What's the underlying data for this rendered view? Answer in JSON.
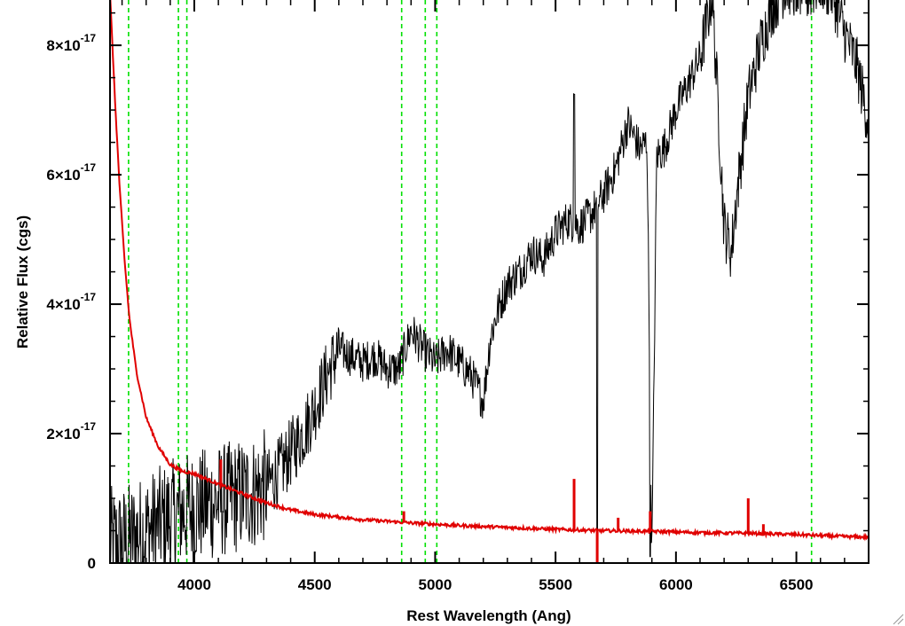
{
  "chart_data": {
    "type": "line",
    "xlabel": "Rest Wavelength (Ang)",
    "ylabel": "Relative Flux (cgs)",
    "xlim": [
      3650,
      6800
    ],
    "ylim": [
      0,
      8.7e-17
    ],
    "x_ticks": [
      4000,
      4500,
      5000,
      5500,
      6000,
      6500
    ],
    "x_tick_labels": [
      "4000",
      "4500",
      "5000",
      "5500",
      "6000",
      "6500"
    ],
    "y_ticks": [
      0,
      2e-17,
      4e-17,
      6e-17,
      8e-17
    ],
    "y_tick_labels": [
      {
        "mantissa": "0",
        "exponent": ""
      },
      {
        "mantissa": "2×10",
        "exponent": "-17"
      },
      {
        "mantissa": "4×10",
        "exponent": "-17"
      },
      {
        "mantissa": "6×10",
        "exponent": "-17"
      },
      {
        "mantissa": "8×10",
        "exponent": "-17"
      }
    ],
    "grid": false,
    "vertical_lines": {
      "style": "dashed",
      "color": "#00e000",
      "x": [
        3727,
        3934,
        3969,
        4861,
        4959,
        5007,
        6563
      ]
    },
    "series": [
      {
        "color": "#000000",
        "style": "noisy-spectrum",
        "x": [
          3650,
          3700,
          3750,
          3800,
          3850,
          3900,
          3950,
          4000,
          4050,
          4100,
          4150,
          4200,
          4250,
          4300,
          4350,
          4400,
          4450,
          4500,
          4550,
          4600,
          4650,
          4700,
          4750,
          4800,
          4850,
          4900,
          4950,
          5000,
          5050,
          5100,
          5150,
          5200,
          5230,
          5260,
          5300,
          5350,
          5400,
          5450,
          5500,
          5550,
          5600,
          5650,
          5700,
          5750,
          5800,
          5850,
          5880,
          5900,
          5920,
          5950,
          6000,
          6050,
          6100,
          6150,
          6180,
          6200,
          6230,
          6250,
          6300,
          6350,
          6400,
          6450,
          6500,
          6550,
          6600,
          6650,
          6700,
          6750,
          6800
        ],
        "y": [
          3e-18,
          3e-18,
          4e-18,
          5e-18,
          6e-18,
          7e-18,
          8e-18,
          8.5e-18,
          9e-18,
          9.5e-18,
          1e-17,
          1.05e-17,
          1.1e-17,
          1.2e-17,
          1.4e-17,
          1.7e-17,
          2e-17,
          2.4e-17,
          2.9e-17,
          3.3e-17,
          3.2e-17,
          3.1e-17,
          3.2e-17,
          3e-17,
          3e-17,
          3.6e-17,
          3.3e-17,
          3.1e-17,
          3.3e-17,
          3.1e-17,
          2.9e-17,
          2.5e-17,
          3.5e-17,
          3.9e-17,
          4.3e-17,
          4.5e-17,
          4.8e-17,
          4.7e-17,
          5.1e-17,
          5.3e-17,
          5.2e-17,
          5.4e-17,
          5.7e-17,
          6.1e-17,
          6.8e-17,
          6.4e-17,
          6.5e-17,
          1e-18,
          6.3e-17,
          6.4e-17,
          7e-17,
          7.4e-17,
          7.8e-17,
          8.8e-17,
          6.7e-17,
          5.2e-17,
          4.8e-17,
          5.6e-17,
          7.2e-17,
          8e-17,
          8.6e-17,
          8.9e-17,
          8.9e-17,
          8.8e-17,
          9e-17,
          8.8e-17,
          8.2e-17,
          7.7e-17,
          6.8e-17
        ]
      },
      {
        "color": "#e00000",
        "style": "smooth-line",
        "x": [
          3650,
          3670,
          3690,
          3710,
          3730,
          3760,
          3800,
          3850,
          3900,
          3950,
          4000,
          4100,
          4200,
          4300,
          4400,
          4500,
          4700,
          4900,
          5100,
          5300,
          5500,
          5700,
          5900,
          6100,
          6300,
          6500,
          6700,
          6800
        ],
        "y": [
          8.8e-17,
          7.2e-17,
          5.8e-17,
          4.7e-17,
          3.8e-17,
          2.95e-17,
          2.25e-17,
          1.8e-17,
          1.52e-17,
          1.42e-17,
          1.38e-17,
          1.22e-17,
          1.07e-17,
          9.3e-18,
          8.2e-18,
          7.5e-18,
          6.7e-18,
          6.2e-18,
          5.8e-18,
          5.5e-18,
          5.2e-18,
          5e-18,
          4.9e-18,
          4.7e-18,
          4.6e-18,
          4.4e-18,
          4.1e-18,
          4e-18
        ]
      }
    ],
    "red_spikes": [
      {
        "x": 4110,
        "y": 1.6e-17
      },
      {
        "x": 4870,
        "y": 8e-18
      },
      {
        "x": 5577,
        "y": 1.3e-17
      },
      {
        "x": 5760,
        "y": 7e-18
      },
      {
        "x": 5893,
        "y": 8e-18
      },
      {
        "x": 6300,
        "y": 1e-17
      },
      {
        "x": 6363,
        "y": 6e-18
      }
    ],
    "red_dips": [
      {
        "x": 5673,
        "y": -1e-18
      }
    ]
  }
}
